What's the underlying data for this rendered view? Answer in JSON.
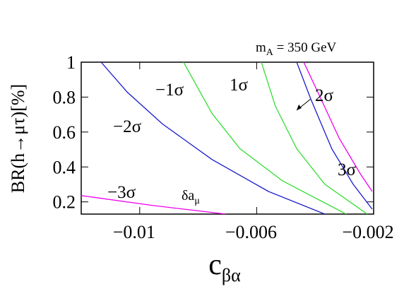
{
  "chart_data": {
    "type": "line",
    "x_label": {
      "text": "c",
      "sub": "βα"
    },
    "y_label": "BR(h→μτ)[%]",
    "xlim": [
      -0.012,
      -0.002
    ],
    "ylim": [
      0.13,
      1
    ],
    "xticks": [
      {
        "value": -0.01,
        "label": "−0.01"
      },
      {
        "value": -0.006,
        "label": "−0.006"
      },
      {
        "value": -0.002,
        "label": "−0.002"
      }
    ],
    "yticks": [
      0.2,
      0.4,
      0.6,
      0.8,
      1
    ],
    "series": [
      {
        "color": "#1a1acc",
        "x": [
          -0.01132,
          -0.01043,
          -0.00922,
          -0.00753,
          -0.0056,
          -0.00367
        ],
        "values": [
          1,
          0.829,
          0.646,
          0.443,
          0.26,
          0.13
        ]
      },
      {
        "color": "#33dd33",
        "x": [
          -0.0085,
          -0.00753,
          -0.00657,
          -0.00512,
          -0.00294
        ],
        "values": [
          1,
          0.707,
          0.504,
          0.321,
          0.13
        ]
      },
      {
        "color": "#33dd33",
        "x": [
          -0.00584,
          -0.00536,
          -0.00463,
          -0.00367,
          -0.00222
        ],
        "values": [
          1,
          0.748,
          0.504,
          0.301,
          0.13
        ]
      },
      {
        "color": "#1a1acc",
        "x": [
          -0.00463,
          -0.00415,
          -0.00343,
          -0.0027,
          -0.00205
        ],
        "values": [
          1,
          0.789,
          0.504,
          0.301,
          0.159
        ]
      },
      {
        "color": "#ee00ee",
        "x": [
          -0.00439,
          -0.00391,
          -0.00318,
          -0.00246,
          -0.00205
        ],
        "values": [
          1,
          0.829,
          0.565,
          0.362,
          0.26
        ]
      },
      {
        "color": "#ee00ee",
        "x": [
          -0.012,
          -0.00954,
          -0.00705
        ],
        "values": [
          0.236,
          0.179,
          0.13
        ]
      }
    ],
    "annotations": [
      {
        "text": "m",
        "sub": "A",
        "rest": " = 350 GeV"
      },
      {
        "text": "−1σ"
      },
      {
        "text": "1σ"
      },
      {
        "text": "−2σ"
      },
      {
        "text": "2σ"
      },
      {
        "text": "3σ"
      },
      {
        "text": "−3σ"
      },
      {
        "text": "δa",
        "sub": "μ"
      }
    ]
  }
}
